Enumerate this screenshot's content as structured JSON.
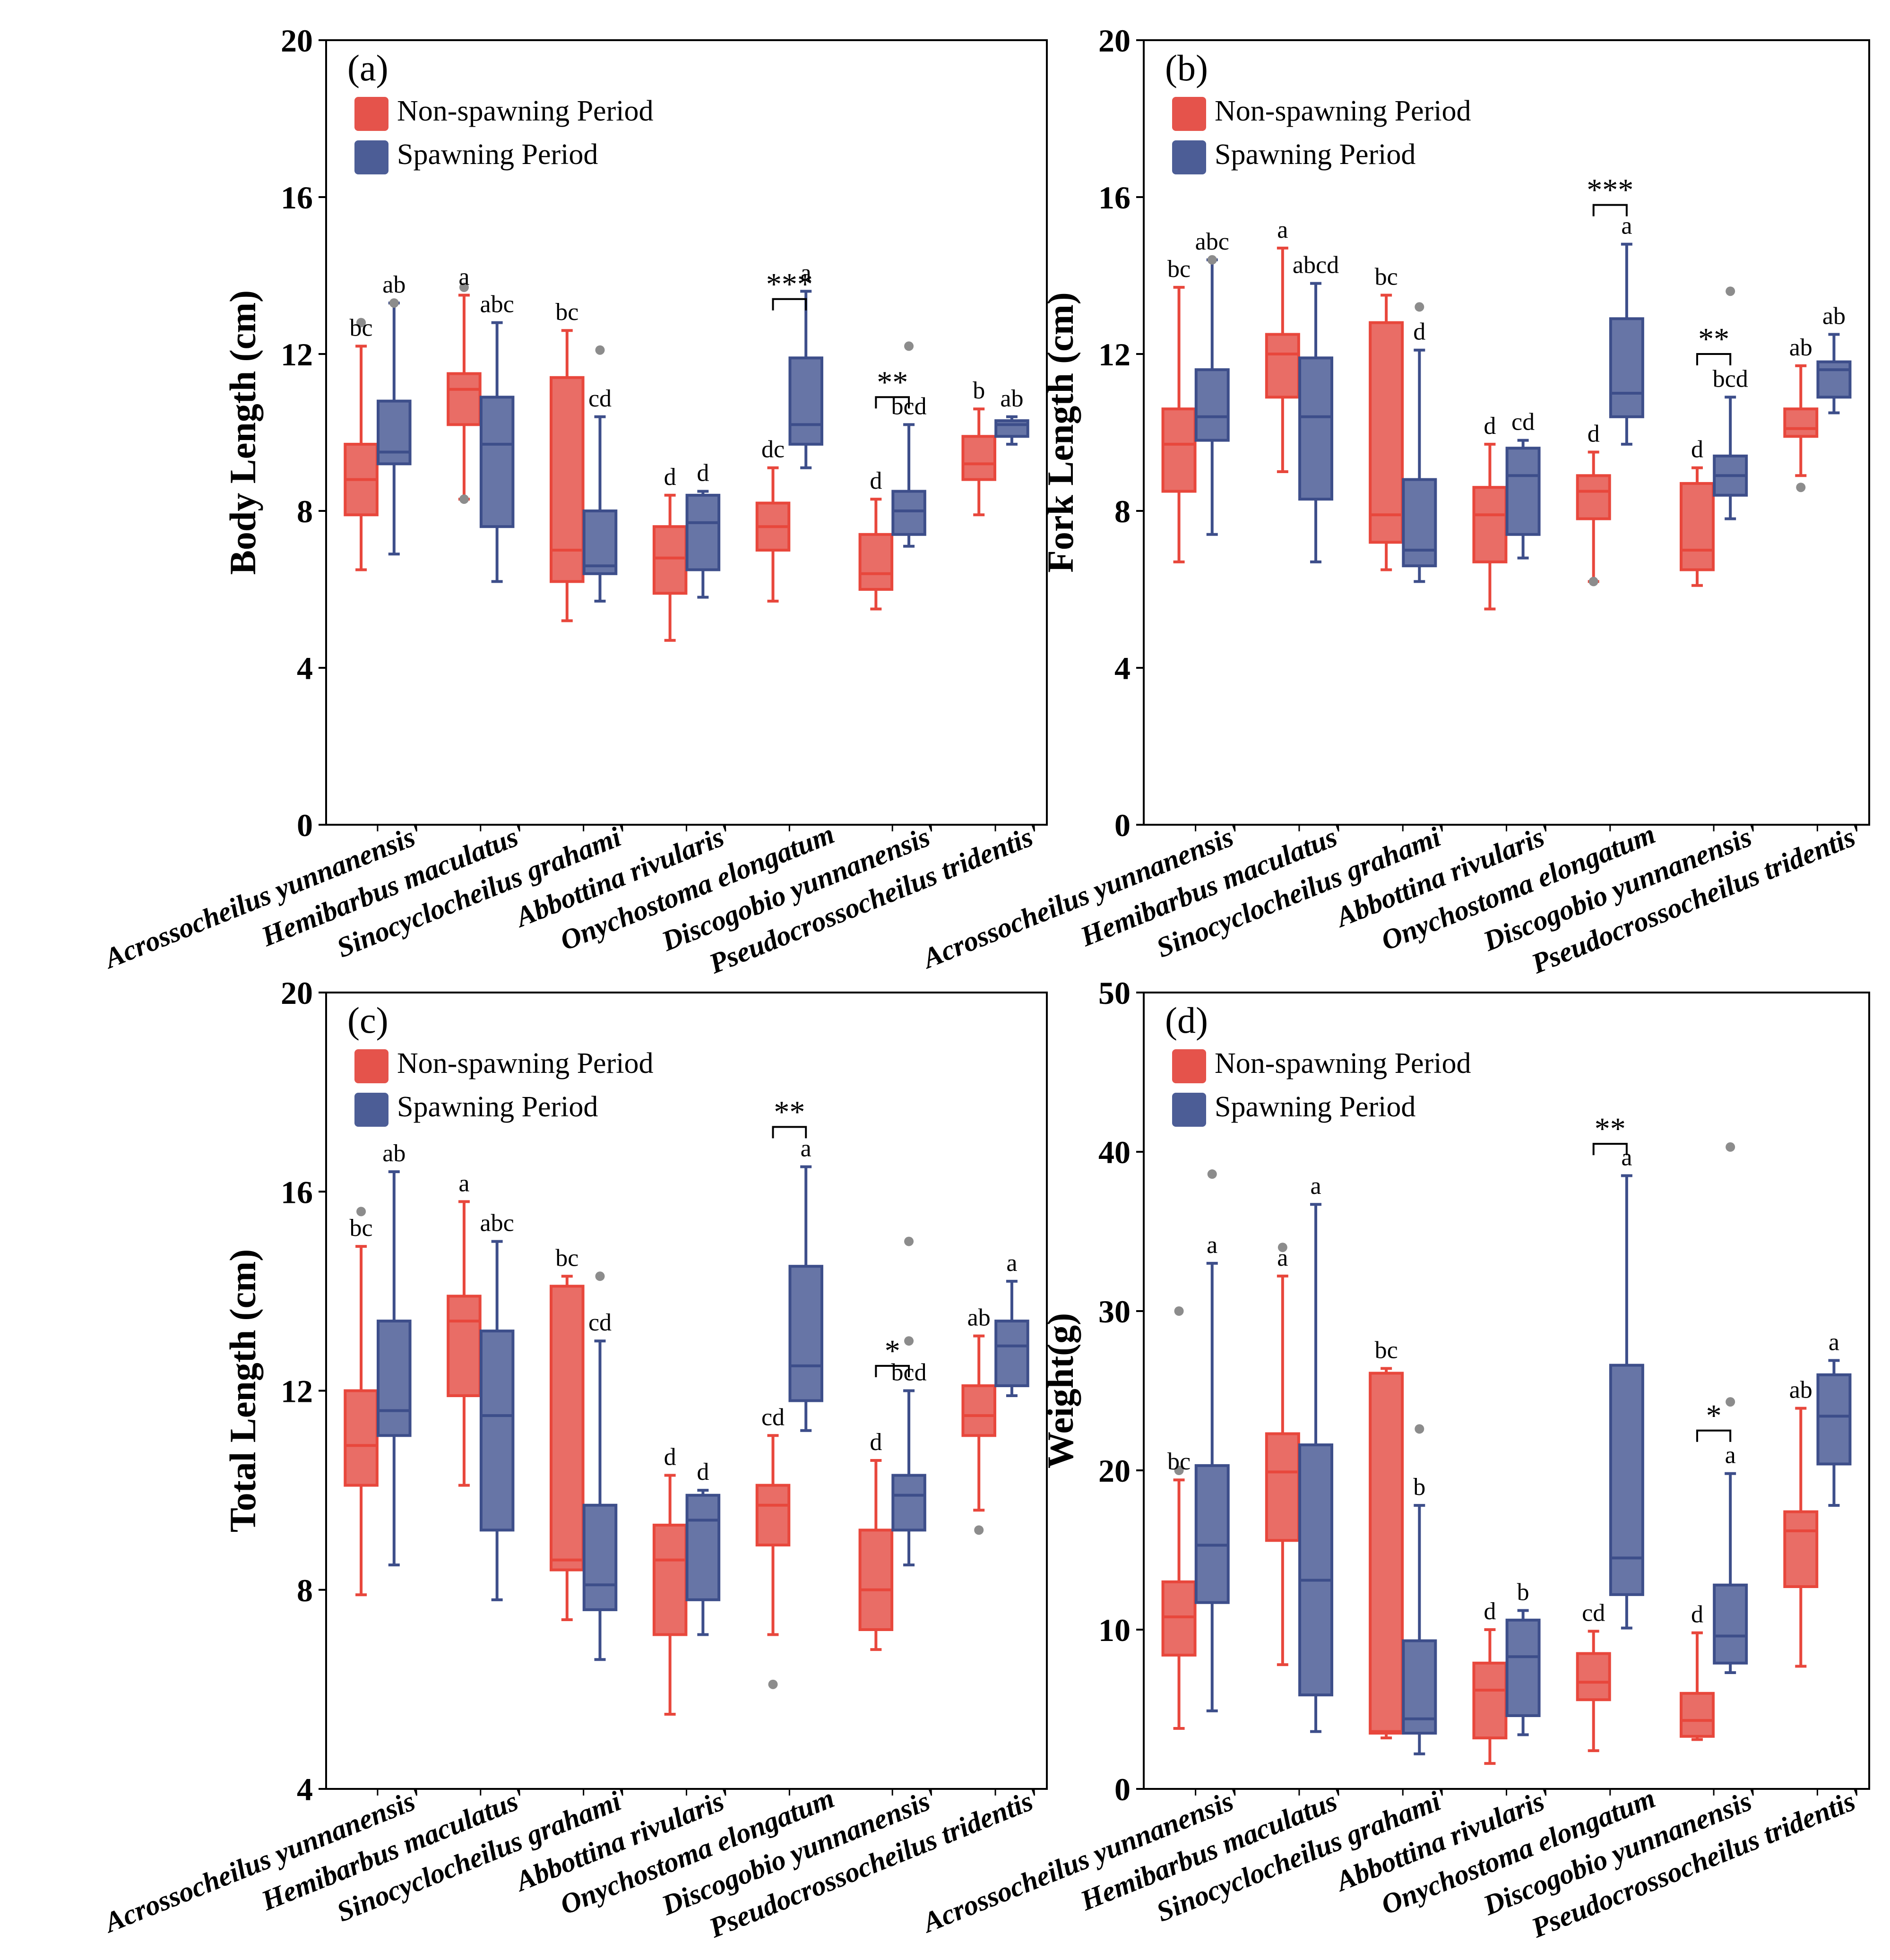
{
  "legend": {
    "non_spawning": "Non-spawning Period",
    "spawning": "Spawning Period"
  },
  "colors": {
    "non_spawning": "#e5534b",
    "spawning": "#4c5d96",
    "non_spawning_line": "#e8473c",
    "spawning_line": "#3d4e8a",
    "outlier": "#8c8c8c"
  },
  "species_labels": [
    "Acrossocheilus yunnanensis'",
    "Hemibarbus maculatus'",
    "Sinocyclocheilus grahami'",
    "Abbottina rivularis'",
    "Onychostoma elongatum",
    "Discogobio yunnanensis'",
    "Pseudocrossocheilus tridentis'"
  ],
  "chart_data": [
    {
      "panel": "(a)",
      "type": "box",
      "ylabel": "Body Length (cm)",
      "ylim": [
        0,
        20
      ],
      "yticks": [
        0,
        4,
        8,
        12,
        16,
        20
      ],
      "series": [
        {
          "name": "Non-spawning Period",
          "key": "non_spawning",
          "boxes": [
            {
              "min": 6.5,
              "q1": 7.9,
              "median": 8.8,
              "q3": 9.7,
              "max": 12.2,
              "outliers": [
                12.8
              ],
              "letter": "bc"
            },
            {
              "min": 8.3,
              "q1": 10.2,
              "median": 11.1,
              "q3": 11.5,
              "max": 13.5,
              "outliers": [
                13.7,
                8.3
              ],
              "letter": "a"
            },
            {
              "min": 5.2,
              "q1": 6.2,
              "median": 7.0,
              "q3": 11.4,
              "max": 12.6,
              "outliers": [],
              "letter": "bc"
            },
            {
              "min": 4.7,
              "q1": 5.9,
              "median": 6.8,
              "q3": 7.6,
              "max": 8.4,
              "outliers": [],
              "letter": "d"
            },
            {
              "min": 5.7,
              "q1": 7.0,
              "median": 7.6,
              "q3": 8.2,
              "max": 9.1,
              "outliers": [],
              "letter": "dc"
            },
            {
              "min": 5.5,
              "q1": 6.0,
              "median": 6.4,
              "q3": 7.4,
              "max": 8.3,
              "outliers": [],
              "letter": "d"
            },
            {
              "min": 7.9,
              "q1": 8.8,
              "median": 9.2,
              "q3": 9.9,
              "max": 10.6,
              "outliers": [],
              "letter": "b"
            }
          ]
        },
        {
          "name": "Spawning Period",
          "key": "spawning",
          "boxes": [
            {
              "min": 6.9,
              "q1": 9.2,
              "median": 9.5,
              "q3": 10.8,
              "max": 13.3,
              "outliers": [
                13.3
              ],
              "letter": "ab"
            },
            {
              "min": 6.2,
              "q1": 7.6,
              "median": 9.7,
              "q3": 10.9,
              "max": 12.8,
              "outliers": [],
              "letter": "abc"
            },
            {
              "min": 5.7,
              "q1": 6.4,
              "median": 6.6,
              "q3": 8.0,
              "max": 10.4,
              "outliers": [
                12.1
              ],
              "letter": "cd"
            },
            {
              "min": 5.8,
              "q1": 6.5,
              "median": 7.7,
              "q3": 8.4,
              "max": 8.5,
              "outliers": [],
              "letter": "d"
            },
            {
              "min": 9.1,
              "q1": 9.7,
              "median": 10.2,
              "q3": 11.9,
              "max": 13.6,
              "outliers": [],
              "letter": "a"
            },
            {
              "min": 7.1,
              "q1": 7.4,
              "median": 8.0,
              "q3": 8.5,
              "max": 10.2,
              "outliers": [
                12.2
              ],
              "letter": "bcd"
            },
            {
              "min": 9.7,
              "q1": 9.9,
              "median": 10.2,
              "q3": 10.3,
              "max": 10.4,
              "outliers": [],
              "letter": "ab"
            }
          ]
        }
      ],
      "significance": [
        {
          "group": 4,
          "stars": "***",
          "y": 13.4
        },
        {
          "group": 5,
          "stars": "**",
          "y": 10.9
        }
      ]
    },
    {
      "panel": "(b)",
      "type": "box",
      "ylabel": "Fork Length (cm)",
      "ylim": [
        0,
        20
      ],
      "yticks": [
        0,
        4,
        8,
        12,
        16,
        20
      ],
      "series": [
        {
          "name": "Non-spawning Period",
          "key": "non_spawning",
          "boxes": [
            {
              "min": 6.7,
              "q1": 8.5,
              "median": 9.7,
              "q3": 10.6,
              "max": 13.7,
              "outliers": [],
              "letter": "bc"
            },
            {
              "min": 9.0,
              "q1": 10.9,
              "median": 12.0,
              "q3": 12.5,
              "max": 14.7,
              "outliers": [],
              "letter": "a"
            },
            {
              "min": 6.5,
              "q1": 7.2,
              "median": 7.9,
              "q3": 12.8,
              "max": 13.5,
              "outliers": [],
              "letter": "bc"
            },
            {
              "min": 5.5,
              "q1": 6.7,
              "median": 7.9,
              "q3": 8.6,
              "max": 9.7,
              "outliers": [],
              "letter": "d"
            },
            {
              "min": 6.2,
              "q1": 7.8,
              "median": 8.5,
              "q3": 8.9,
              "max": 9.5,
              "outliers": [
                6.2
              ],
              "letter": "d"
            },
            {
              "min": 6.1,
              "q1": 6.5,
              "median": 7.0,
              "q3": 8.7,
              "max": 9.1,
              "outliers": [],
              "letter": "d"
            },
            {
              "min": 8.9,
              "q1": 9.9,
              "median": 10.1,
              "q3": 10.6,
              "max": 11.7,
              "outliers": [
                8.6
              ],
              "letter": "ab"
            }
          ]
        },
        {
          "name": "Spawning Period",
          "key": "spawning",
          "boxes": [
            {
              "min": 7.4,
              "q1": 9.8,
              "median": 10.4,
              "q3": 11.6,
              "max": 14.4,
              "outliers": [
                14.4
              ],
              "letter": "abc"
            },
            {
              "min": 6.7,
              "q1": 8.3,
              "median": 10.4,
              "q3": 11.9,
              "max": 13.8,
              "outliers": [],
              "letter": "abcd"
            },
            {
              "min": 6.2,
              "q1": 6.6,
              "median": 7.0,
              "q3": 8.8,
              "max": 12.1,
              "outliers": [
                13.2
              ],
              "letter": "d"
            },
            {
              "min": 6.8,
              "q1": 7.4,
              "median": 8.9,
              "q3": 9.6,
              "max": 9.8,
              "outliers": [],
              "letter": "cd"
            },
            {
              "min": 9.7,
              "q1": 10.4,
              "median": 11.0,
              "q3": 12.9,
              "max": 14.8,
              "outliers": [],
              "letter": "a"
            },
            {
              "min": 7.8,
              "q1": 8.4,
              "median": 8.9,
              "q3": 9.4,
              "max": 10.9,
              "outliers": [
                13.6
              ],
              "letter": "bcd"
            },
            {
              "min": 10.5,
              "q1": 10.9,
              "median": 11.6,
              "q3": 11.8,
              "max": 12.5,
              "outliers": [],
              "letter": "ab"
            }
          ]
        }
      ],
      "significance": [
        {
          "group": 4,
          "stars": "***",
          "y": 15.8
        },
        {
          "group": 5,
          "stars": "**",
          "y": 12.0
        }
      ]
    },
    {
      "panel": "(c)",
      "type": "box",
      "ylabel": "Total Length (cm)",
      "ylim": [
        4,
        20
      ],
      "yticks": [
        4,
        8,
        12,
        16,
        20
      ],
      "series": [
        {
          "name": "Non-spawning Period",
          "key": "non_spawning",
          "boxes": [
            {
              "min": 7.9,
              "q1": 10.1,
              "median": 10.9,
              "q3": 12.0,
              "max": 14.9,
              "outliers": [
                15.6
              ],
              "letter": "bc"
            },
            {
              "min": 10.1,
              "q1": 11.9,
              "median": 13.4,
              "q3": 13.9,
              "max": 15.8,
              "outliers": [],
              "letter": "a"
            },
            {
              "min": 7.4,
              "q1": 8.4,
              "median": 8.6,
              "q3": 14.1,
              "max": 14.3,
              "outliers": [],
              "letter": "bc"
            },
            {
              "min": 5.5,
              "q1": 7.1,
              "median": 8.6,
              "q3": 9.3,
              "max": 10.3,
              "outliers": [],
              "letter": "d"
            },
            {
              "min": 7.1,
              "q1": 8.9,
              "median": 9.7,
              "q3": 10.1,
              "max": 11.1,
              "outliers": [
                6.1
              ],
              "letter": "cd"
            },
            {
              "min": 6.8,
              "q1": 7.2,
              "median": 8.0,
              "q3": 9.2,
              "max": 10.6,
              "outliers": [],
              "letter": "d"
            },
            {
              "min": 9.6,
              "q1": 11.1,
              "median": 11.5,
              "q3": 12.1,
              "max": 13.1,
              "outliers": [
                9.2
              ],
              "letter": "ab"
            }
          ]
        },
        {
          "name": "Spawning Period",
          "key": "spawning",
          "boxes": [
            {
              "min": 8.5,
              "q1": 11.1,
              "median": 11.6,
              "q3": 13.4,
              "max": 16.4,
              "outliers": [],
              "letter": "ab"
            },
            {
              "min": 7.8,
              "q1": 9.2,
              "median": 11.5,
              "q3": 13.2,
              "max": 15.0,
              "outliers": [],
              "letter": "abc"
            },
            {
              "min": 6.6,
              "q1": 7.6,
              "median": 8.1,
              "q3": 9.7,
              "max": 13.0,
              "outliers": [
                14.3
              ],
              "letter": "cd"
            },
            {
              "min": 7.1,
              "q1": 7.8,
              "median": 9.4,
              "q3": 9.9,
              "max": 10.0,
              "outliers": [],
              "letter": "d"
            },
            {
              "min": 11.2,
              "q1": 11.8,
              "median": 12.5,
              "q3": 14.5,
              "max": 16.5,
              "outliers": [],
              "letter": "a"
            },
            {
              "min": 8.5,
              "q1": 9.2,
              "median": 9.9,
              "q3": 10.3,
              "max": 12.0,
              "outliers": [
                15.0,
                13.0
              ],
              "letter": "bcd"
            },
            {
              "min": 11.9,
              "q1": 12.1,
              "median": 12.9,
              "q3": 13.4,
              "max": 14.2,
              "outliers": [],
              "letter": "a"
            }
          ]
        }
      ],
      "significance": [
        {
          "group": 4,
          "stars": "**",
          "y": 17.3
        },
        {
          "group": 5,
          "stars": "*",
          "y": 12.5
        }
      ]
    },
    {
      "panel": "(d)",
      "type": "box",
      "ylabel": "Weight(g)",
      "ylim": [
        0,
        50
      ],
      "yticks": [
        0,
        10,
        20,
        30,
        40,
        50
      ],
      "series": [
        {
          "name": "Non-spawning Period",
          "key": "non_spawning",
          "boxes": [
            {
              "min": 3.8,
              "q1": 8.4,
              "median": 10.8,
              "q3": 13.0,
              "max": 19.4,
              "outliers": [
                30.0,
                20.0
              ],
              "letter": "bc"
            },
            {
              "min": 7.8,
              "q1": 15.6,
              "median": 19.9,
              "q3": 22.3,
              "max": 32.2,
              "outliers": [
                34.0
              ],
              "letter": "a"
            },
            {
              "min": 3.2,
              "q1": 3.5,
              "median": 3.6,
              "q3": 26.1,
              "max": 26.4,
              "outliers": [],
              "letter": "bc"
            },
            {
              "min": 1.6,
              "q1": 3.2,
              "median": 6.2,
              "q3": 7.9,
              "max": 10.0,
              "outliers": [],
              "letter": "d"
            },
            {
              "min": 2.4,
              "q1": 5.6,
              "median": 6.7,
              "q3": 8.5,
              "max": 9.9,
              "outliers": [],
              "letter": "cd"
            },
            {
              "min": 3.1,
              "q1": 3.3,
              "median": 4.3,
              "q3": 6.0,
              "max": 9.8,
              "outliers": [],
              "letter": "d"
            },
            {
              "min": 7.7,
              "q1": 12.7,
              "median": 16.2,
              "q3": 17.4,
              "max": 23.9,
              "outliers": [],
              "letter": "ab"
            }
          ]
        },
        {
          "name": "Spawning Period",
          "key": "spawning",
          "boxes": [
            {
              "min": 4.9,
              "q1": 11.7,
              "median": 15.3,
              "q3": 20.3,
              "max": 33.0,
              "outliers": [
                38.6
              ],
              "letter": "a"
            },
            {
              "min": 3.6,
              "q1": 5.9,
              "median": 13.1,
              "q3": 21.6,
              "max": 36.7,
              "outliers": [],
              "letter": "a"
            },
            {
              "min": 2.2,
              "q1": 3.5,
              "median": 4.4,
              "q3": 9.3,
              "max": 17.8,
              "outliers": [
                22.6
              ],
              "letter": "b"
            },
            {
              "min": 3.4,
              "q1": 4.6,
              "median": 8.3,
              "q3": 10.6,
              "max": 11.2,
              "outliers": [],
              "letter": "b"
            },
            {
              "min": 10.1,
              "q1": 12.2,
              "median": 14.5,
              "q3": 26.6,
              "max": 38.5,
              "outliers": [],
              "letter": "a"
            },
            {
              "min": 7.3,
              "q1": 7.9,
              "median": 9.6,
              "q3": 12.8,
              "max": 19.8,
              "outliers": [
                40.3,
                24.3
              ],
              "letter": "a"
            },
            {
              "min": 17.8,
              "q1": 20.4,
              "median": 23.4,
              "q3": 26.0,
              "max": 26.9,
              "outliers": [],
              "letter": "a"
            }
          ]
        }
      ],
      "significance": [
        {
          "group": 4,
          "stars": "**",
          "y": 40.5
        },
        {
          "group": 5,
          "stars": "*",
          "y": 22.5
        }
      ]
    }
  ]
}
